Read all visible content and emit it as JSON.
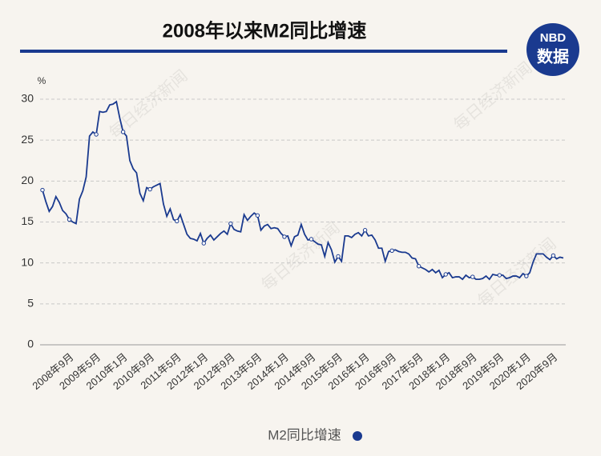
{
  "chart_data": {
    "type": "line",
    "title": "2008年以来M2同比增速",
    "y_unit": "%",
    "logo": {
      "top": "NBD",
      "bottom": "数据"
    },
    "watermark": "每日经济新闻",
    "categories": [
      null,
      null,
      null,
      null,
      null,
      null,
      null,
      null,
      "2008年9月",
      null,
      null,
      null,
      null,
      null,
      null,
      null,
      "2009年5月",
      null,
      null,
      null,
      null,
      null,
      null,
      null,
      "2010年1月",
      null,
      null,
      null,
      null,
      null,
      null,
      null,
      "2010年9月",
      null,
      null,
      null,
      null,
      null,
      null,
      null,
      "2011年5月",
      null,
      null,
      null,
      null,
      null,
      null,
      null,
      "2012年1月",
      null,
      null,
      null,
      null,
      null,
      null,
      null,
      "2012年9月",
      null,
      null,
      null,
      null,
      null,
      null,
      null,
      "2013年5月",
      null,
      null,
      null,
      null,
      null,
      null,
      null,
      "2014年1月",
      null,
      null,
      null,
      null,
      null,
      null,
      null,
      "2014年9月",
      null,
      null,
      null,
      null,
      null,
      null,
      null,
      "2015年5月",
      null,
      null,
      null,
      null,
      null,
      null,
      null,
      "2016年1月",
      null,
      null,
      null,
      null,
      null,
      null,
      null,
      "2016年9月",
      null,
      null,
      null,
      null,
      null,
      null,
      null,
      "2017年5月",
      null,
      null,
      null,
      null,
      null,
      null,
      null,
      "2018年1月",
      null,
      null,
      null,
      null,
      null,
      null,
      null,
      "2018年9月",
      null,
      null,
      null,
      null,
      null,
      null,
      null,
      "2019年5月",
      null,
      null,
      null,
      null,
      null,
      null,
      null,
      "2020年1月",
      null,
      null,
      null,
      null,
      null,
      null,
      null,
      "2020年9月",
      null,
      null,
      null
    ],
    "series": [
      {
        "name": "M2同比增速",
        "color": "#1a3a8f",
        "values": [
          18.9,
          17.5,
          16.3,
          16.9,
          18.1,
          17.4,
          16.4,
          16.0,
          15.3,
          15.0,
          14.8,
          17.8,
          18.8,
          20.5,
          25.5,
          26.0,
          25.7,
          28.5,
          28.4,
          28.5,
          29.3,
          29.4,
          29.7,
          27.7,
          26.0,
          25.5,
          22.5,
          21.5,
          21.0,
          18.5,
          17.6,
          19.2,
          19.0,
          19.3,
          19.5,
          19.7,
          17.2,
          15.7,
          16.6,
          15.3,
          15.1,
          15.9,
          14.7,
          13.5,
          13.0,
          12.9,
          12.7,
          13.6,
          12.4,
          13.0,
          13.4,
          12.8,
          13.2,
          13.6,
          13.9,
          13.5,
          14.8,
          14.1,
          13.9,
          13.8,
          15.9,
          15.2,
          15.7,
          16.1,
          15.8,
          14.0,
          14.5,
          14.7,
          14.2,
          14.3,
          14.2,
          13.6,
          13.2,
          13.3,
          12.1,
          13.2,
          13.4,
          14.7,
          13.5,
          12.8,
          12.9,
          12.6,
          12.3,
          12.2,
          10.8,
          12.5,
          11.6,
          10.1,
          10.8,
          10.2,
          13.3,
          13.3,
          13.1,
          13.5,
          13.7,
          13.3,
          14.0,
          13.3,
          13.4,
          12.8,
          11.8,
          11.8,
          10.2,
          11.4,
          11.5,
          11.6,
          11.4,
          11.3,
          11.3,
          11.1,
          10.6,
          10.5,
          9.6,
          9.4,
          9.2,
          8.9,
          9.2,
          8.8,
          9.1,
          8.2,
          8.6,
          8.8,
          8.2,
          8.3,
          8.3,
          8.0,
          8.5,
          8.2,
          8.3,
          8.0,
          8.0,
          8.1,
          8.4,
          8.0,
          8.6,
          8.5,
          8.5,
          8.5,
          8.1,
          8.2,
          8.4,
          8.4,
          8.2,
          8.7,
          8.4,
          8.8,
          10.1,
          11.1,
          11.1,
          11.1,
          10.7,
          10.4,
          10.9,
          10.5,
          10.7,
          10.6
        ]
      }
    ],
    "ylim": [
      0,
      30
    ],
    "yticks": [
      0,
      5,
      10,
      15,
      20,
      25,
      30
    ],
    "grid": true
  }
}
